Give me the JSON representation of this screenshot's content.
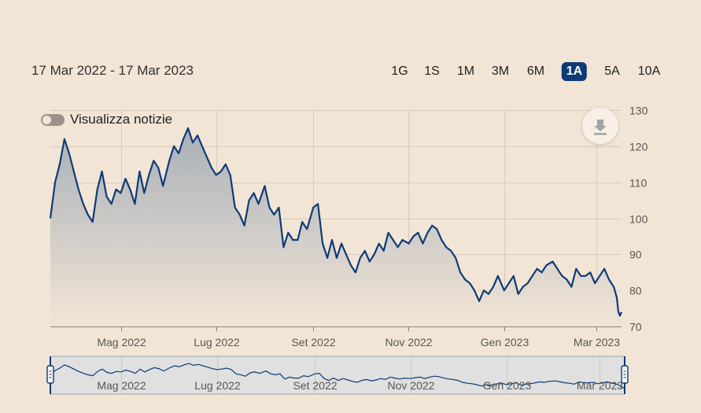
{
  "range_label": "17 Mar 2022 - 17 Mar 2023",
  "periods": [
    {
      "label": "1G",
      "active": false
    },
    {
      "label": "1S",
      "active": false
    },
    {
      "label": "1M",
      "active": false
    },
    {
      "label": "3M",
      "active": false
    },
    {
      "label": "6M",
      "active": false
    },
    {
      "label": "1A",
      "active": true
    },
    {
      "label": "5A",
      "active": false
    },
    {
      "label": "10A",
      "active": false
    }
  ],
  "news_toggle": {
    "label": "Visualizza notizie",
    "on": false
  },
  "download_icon": "download-icon",
  "colors": {
    "line": "#0d3b78",
    "fill_top": "#a9b0b8",
    "fill_bottom": "#f2e5d6",
    "grid": "#d8cabb",
    "navigator_bg": "#dfe0df",
    "active_period": "#0d3b78"
  },
  "chart_data": {
    "type": "area",
    "title": "",
    "xlabel": "",
    "ylabel": "",
    "ylim": [
      70,
      130
    ],
    "yticks": [
      70,
      80,
      90,
      100,
      110,
      120,
      130
    ],
    "xlim": [
      "2022-03-17",
      "2023-03-17"
    ],
    "xticks": [
      {
        "date": "2022-05-01",
        "label": "Mag 2022"
      },
      {
        "date": "2022-07-01",
        "label": "Lug 2022"
      },
      {
        "date": "2022-09-01",
        "label": "Set 2022"
      },
      {
        "date": "2022-11-01",
        "label": "Nov 2022"
      },
      {
        "date": "2023-01-01",
        "label": "Gen 2023"
      },
      {
        "date": "2023-03-01",
        "label": "Mar 2023"
      }
    ],
    "grid": true,
    "series": [
      {
        "x": [
          "2022-03-17",
          "2022-03-20",
          "2022-03-23",
          "2022-03-26",
          "2022-03-29",
          "2022-04-01",
          "2022-04-04",
          "2022-04-07",
          "2022-04-10",
          "2022-04-13",
          "2022-04-16",
          "2022-04-19",
          "2022-04-22",
          "2022-04-25",
          "2022-04-28",
          "2022-05-01",
          "2022-05-04",
          "2022-05-07",
          "2022-05-10",
          "2022-05-13",
          "2022-05-16",
          "2022-05-19",
          "2022-05-22",
          "2022-05-25",
          "2022-05-28",
          "2022-06-01",
          "2022-06-04",
          "2022-06-07",
          "2022-06-10",
          "2022-06-13",
          "2022-06-16",
          "2022-06-19",
          "2022-06-22",
          "2022-06-25",
          "2022-06-28",
          "2022-07-01",
          "2022-07-04",
          "2022-07-07",
          "2022-07-10",
          "2022-07-13",
          "2022-07-16",
          "2022-07-19",
          "2022-07-22",
          "2022-07-25",
          "2022-07-28",
          "2022-08-01",
          "2022-08-04",
          "2022-08-07",
          "2022-08-10",
          "2022-08-13",
          "2022-08-16",
          "2022-08-19",
          "2022-08-22",
          "2022-08-25",
          "2022-08-28",
          "2022-09-01",
          "2022-09-04",
          "2022-09-07",
          "2022-09-10",
          "2022-09-13",
          "2022-09-16",
          "2022-09-19",
          "2022-09-22",
          "2022-09-25",
          "2022-09-28",
          "2022-10-01",
          "2022-10-04",
          "2022-10-07",
          "2022-10-10",
          "2022-10-13",
          "2022-10-16",
          "2022-10-19",
          "2022-10-22",
          "2022-10-25",
          "2022-10-28",
          "2022-11-01",
          "2022-11-04",
          "2022-11-07",
          "2022-11-10",
          "2022-11-13",
          "2022-11-16",
          "2022-11-19",
          "2022-11-22",
          "2022-11-25",
          "2022-11-28",
          "2022-12-01",
          "2022-12-04",
          "2022-12-07",
          "2022-12-10",
          "2022-12-13",
          "2022-12-16",
          "2022-12-19",
          "2022-12-22",
          "2022-12-25",
          "2022-12-28",
          "2023-01-01",
          "2023-01-04",
          "2023-01-07",
          "2023-01-10",
          "2023-01-13",
          "2023-01-16",
          "2023-01-19",
          "2023-01-22",
          "2023-01-25",
          "2023-01-28",
          "2023-02-01",
          "2023-02-04",
          "2023-02-07",
          "2023-02-10",
          "2023-02-13",
          "2023-02-16",
          "2023-02-19",
          "2023-02-22",
          "2023-02-25",
          "2023-02-28",
          "2023-03-03",
          "2023-03-06",
          "2023-03-09",
          "2023-03-12",
          "2023-03-14",
          "2023-03-15",
          "2023-03-16",
          "2023-03-17"
        ],
        "values": [
          100,
          110,
          115,
          122,
          118,
          113,
          108,
          104,
          101,
          99,
          108,
          113,
          106,
          104,
          108,
          107,
          111,
          108,
          104,
          113,
          107,
          112,
          116,
          114,
          109,
          116,
          120,
          118,
          122,
          125,
          121,
          123,
          120,
          117,
          114,
          112,
          113,
          115,
          112,
          103,
          101,
          98,
          105,
          107,
          104,
          109,
          103,
          101,
          103,
          92,
          96,
          94,
          94,
          99,
          97,
          103,
          104,
          93,
          89,
          94,
          89,
          93,
          90,
          87,
          85,
          89,
          91,
          88,
          90,
          93,
          91,
          96,
          94,
          92,
          94,
          93,
          95,
          96,
          93,
          96,
          98,
          97,
          94,
          92,
          91,
          89,
          85,
          83,
          82,
          80,
          77,
          80,
          79,
          81,
          84,
          80,
          82,
          84,
          79,
          81,
          82,
          84,
          86,
          85,
          87,
          88,
          86,
          84,
          83,
          81,
          86,
          84,
          84,
          85,
          82,
          84,
          86,
          83,
          81,
          78,
          74,
          73,
          74
        ]
      }
    ]
  }
}
